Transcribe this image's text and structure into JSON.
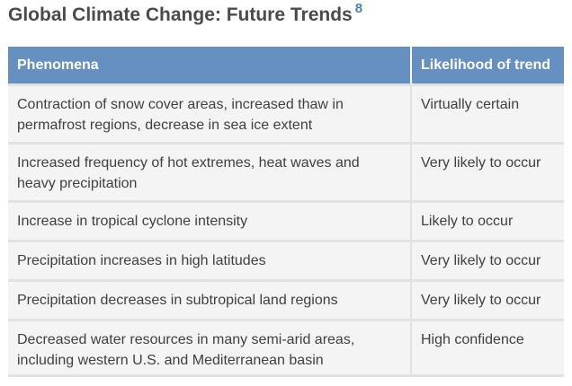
{
  "heading": {
    "title": "Global Climate Change: Future Trends",
    "footnote": "8"
  },
  "table": {
    "headers": [
      "Phenomena",
      "Likelihood of trend"
    ],
    "rows": [
      {
        "phenomena": "Contraction of snow cover areas, increased thaw in permafrost regions, decrease in sea ice extent",
        "likelihood": "Virtually certain"
      },
      {
        "phenomena": "Increased frequency of hot extremes, heat waves and heavy precipitation",
        "likelihood": "Very likely to occur"
      },
      {
        "phenomena": "Increase in tropical cyclone intensity",
        "likelihood": "Likely to occur"
      },
      {
        "phenomena": "Precipitation increases in high latitudes",
        "likelihood": "Very likely to occur"
      },
      {
        "phenomena": "Precipitation decreases in subtropical land regions",
        "likelihood": "Very likely to occur"
      },
      {
        "phenomena": "Decreased water resources in many semi-arid areas, including western U.S. and Mediterranean basin",
        "likelihood": "High confidence"
      }
    ]
  },
  "colors": {
    "header_bg": "#6590c1",
    "row_bg": "#f4f4f4",
    "footnote": "#4f7fb0"
  }
}
